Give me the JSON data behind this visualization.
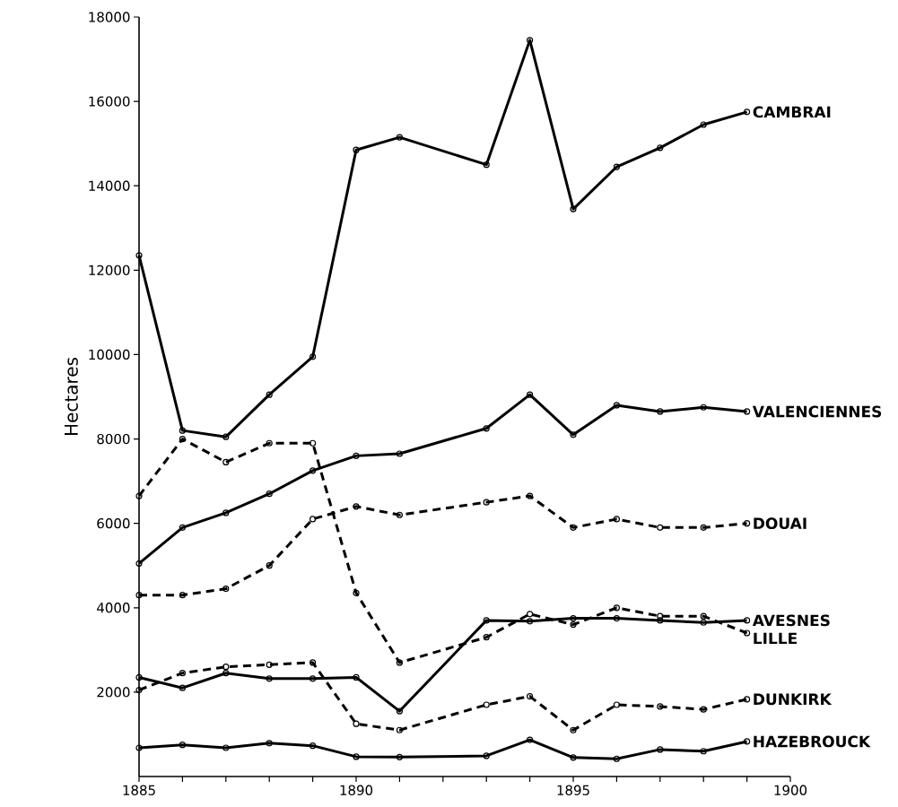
{
  "chart_data": {
    "type": "line",
    "ylabel": "Hectares",
    "x": [
      1885,
      1886,
      1887,
      1888,
      1889,
      1890,
      1891,
      1893,
      1894,
      1895,
      1896,
      1897,
      1898,
      1899
    ],
    "xlim": [
      1885,
      1900
    ],
    "xticks": [
      1885,
      {
        "value": 1886,
        "label": null
      },
      {
        "value": 1887,
        "label": null
      },
      {
        "value": 1888,
        "label": null
      },
      {
        "value": 1889,
        "label": null
      },
      1890,
      {
        "value": 1891,
        "label": null
      },
      {
        "value": 1892,
        "label": null
      },
      {
        "value": 1893,
        "label": null
      },
      {
        "value": 1894,
        "label": null
      },
      1895,
      {
        "value": 1896,
        "label": null
      },
      {
        "value": 1897,
        "label": null
      },
      {
        "value": 1898,
        "label": null
      },
      {
        "value": 1899,
        "label": null
      },
      1900
    ],
    "ylim": [
      0,
      18000
    ],
    "yticks": [
      2000,
      4000,
      6000,
      8000,
      10000,
      12000,
      14000,
      16000,
      18000
    ],
    "grid": false,
    "legend": false,
    "marker": "circle",
    "series": [
      {
        "name": "CAMBRAI",
        "color": "#000000",
        "line_style": "solid",
        "values": [
          12350,
          8200,
          8050,
          9050,
          9950,
          14850,
          15150,
          14500,
          17450,
          13450,
          14450,
          14900,
          15450,
          15750
        ]
      },
      {
        "name": "VALENCIENNES",
        "color": "#000000",
        "line_style": "solid",
        "values": [
          5050,
          5900,
          6250,
          6700,
          7250,
          7600,
          7650,
          8250,
          9050,
          8100,
          8800,
          8650,
          8750,
          8650
        ]
      },
      {
        "name": "DOUAI",
        "color": "#000000",
        "line_style": "dashed",
        "values": [
          4300,
          4300,
          4450,
          5000,
          6100,
          6400,
          6200,
          6500,
          6650,
          5900,
          6100,
          5900,
          5900,
          6000
        ]
      },
      {
        "name": "AVESNES",
        "color": "#000000",
        "line_style": "solid",
        "values": [
          2350,
          2100,
          2450,
          2320,
          2320,
          2350,
          1550,
          3700,
          3680,
          3750,
          3750,
          3700,
          3650,
          3700
        ]
      },
      {
        "name": "LILLE",
        "color": "#000000",
        "line_style": "dashed",
        "values": [
          6650,
          8000,
          7450,
          7900,
          7900,
          4350,
          2700,
          3300,
          3850,
          3600,
          4000,
          3800,
          3800,
          3400
        ]
      },
      {
        "name": "DUNKIRK",
        "color": "#000000",
        "line_style": "dashed",
        "values": [
          2050,
          2450,
          2600,
          2650,
          2700,
          1250,
          1100,
          1700,
          1900,
          1100,
          1700,
          1660,
          1590,
          1830
        ]
      },
      {
        "name": "HAZEBROUCK",
        "color": "#000000",
        "line_style": "solid",
        "values": [
          680,
          750,
          680,
          790,
          730,
          470,
          460,
          490,
          870,
          450,
          420,
          640,
          600,
          830
        ]
      }
    ]
  }
}
